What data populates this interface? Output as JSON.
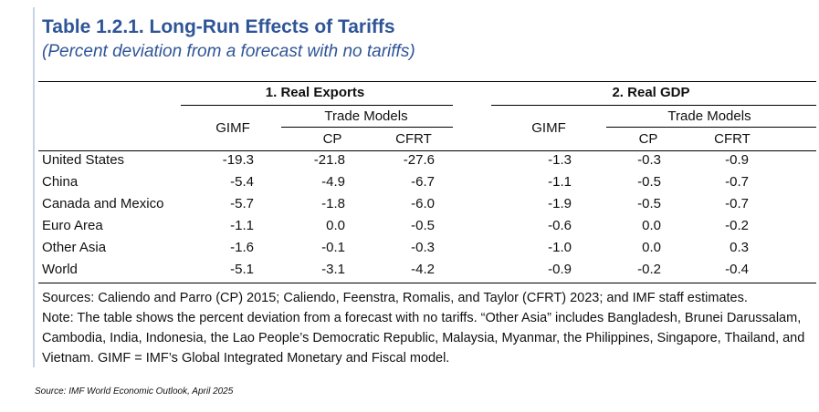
{
  "title": "Table 1.2.1.  Long-Run Effects of Tariffs",
  "subtitle": "(Percent deviation from a forecast with no tariffs)",
  "groups": {
    "exports": "1. Real Exports",
    "gdp": "2. Real GDP"
  },
  "subheaders": {
    "gimf": "GIMF",
    "trade_models": "Trade Models",
    "cp": "CP",
    "cfrt": "CFRT"
  },
  "rows": [
    {
      "label": "United States",
      "values": [
        "-19.3",
        "-21.8",
        "-27.6",
        "-1.3",
        "-0.3",
        "-0.9"
      ]
    },
    {
      "label": "China",
      "values": [
        "-5.4",
        "-4.9",
        "-6.7",
        "-1.1",
        "-0.5",
        "-0.7"
      ]
    },
    {
      "label": "Canada and Mexico",
      "values": [
        "-5.7",
        "-1.8",
        "-6.0",
        "-1.9",
        "-0.5",
        "-0.7"
      ]
    },
    {
      "label": "Euro Area",
      "values": [
        "-1.1",
        "0.0",
        "-0.5",
        "-0.6",
        "0.0",
        "-0.2"
      ]
    },
    {
      "label": "Other Asia",
      "values": [
        "-1.6",
        "-0.1",
        "-0.3",
        "-1.0",
        "0.0",
        "0.3"
      ]
    },
    {
      "label": "World",
      "values": [
        "-5.1",
        "-3.1",
        "-4.2",
        "-0.9",
        "-0.2",
        "-0.4"
      ]
    }
  ],
  "notes": {
    "sources": "Sources: Caliendo and Parro (CP) 2015; Caliendo, Feenstra, Romalis, and Taylor (CFRT) 2023; and IMF staff estimates.",
    "note": "Note: The table shows the percent deviation from a forecast with no tariffs. “Other Asia” includes Bangladesh, Brunei Darussalam, Cambodia, India, Indonesia, the Lao People’s Democratic Republic, Malaysia, Myanmar, the Philippines, Singapore, Thailand, and Vietnam. GIMF = IMF’s Global Integrated Monetary and Fiscal model."
  },
  "source_caption": "Source: IMF World Economic Outlook, April 2025",
  "colors": {
    "title": "#2f5597",
    "left_border": "#c9d3e6"
  }
}
